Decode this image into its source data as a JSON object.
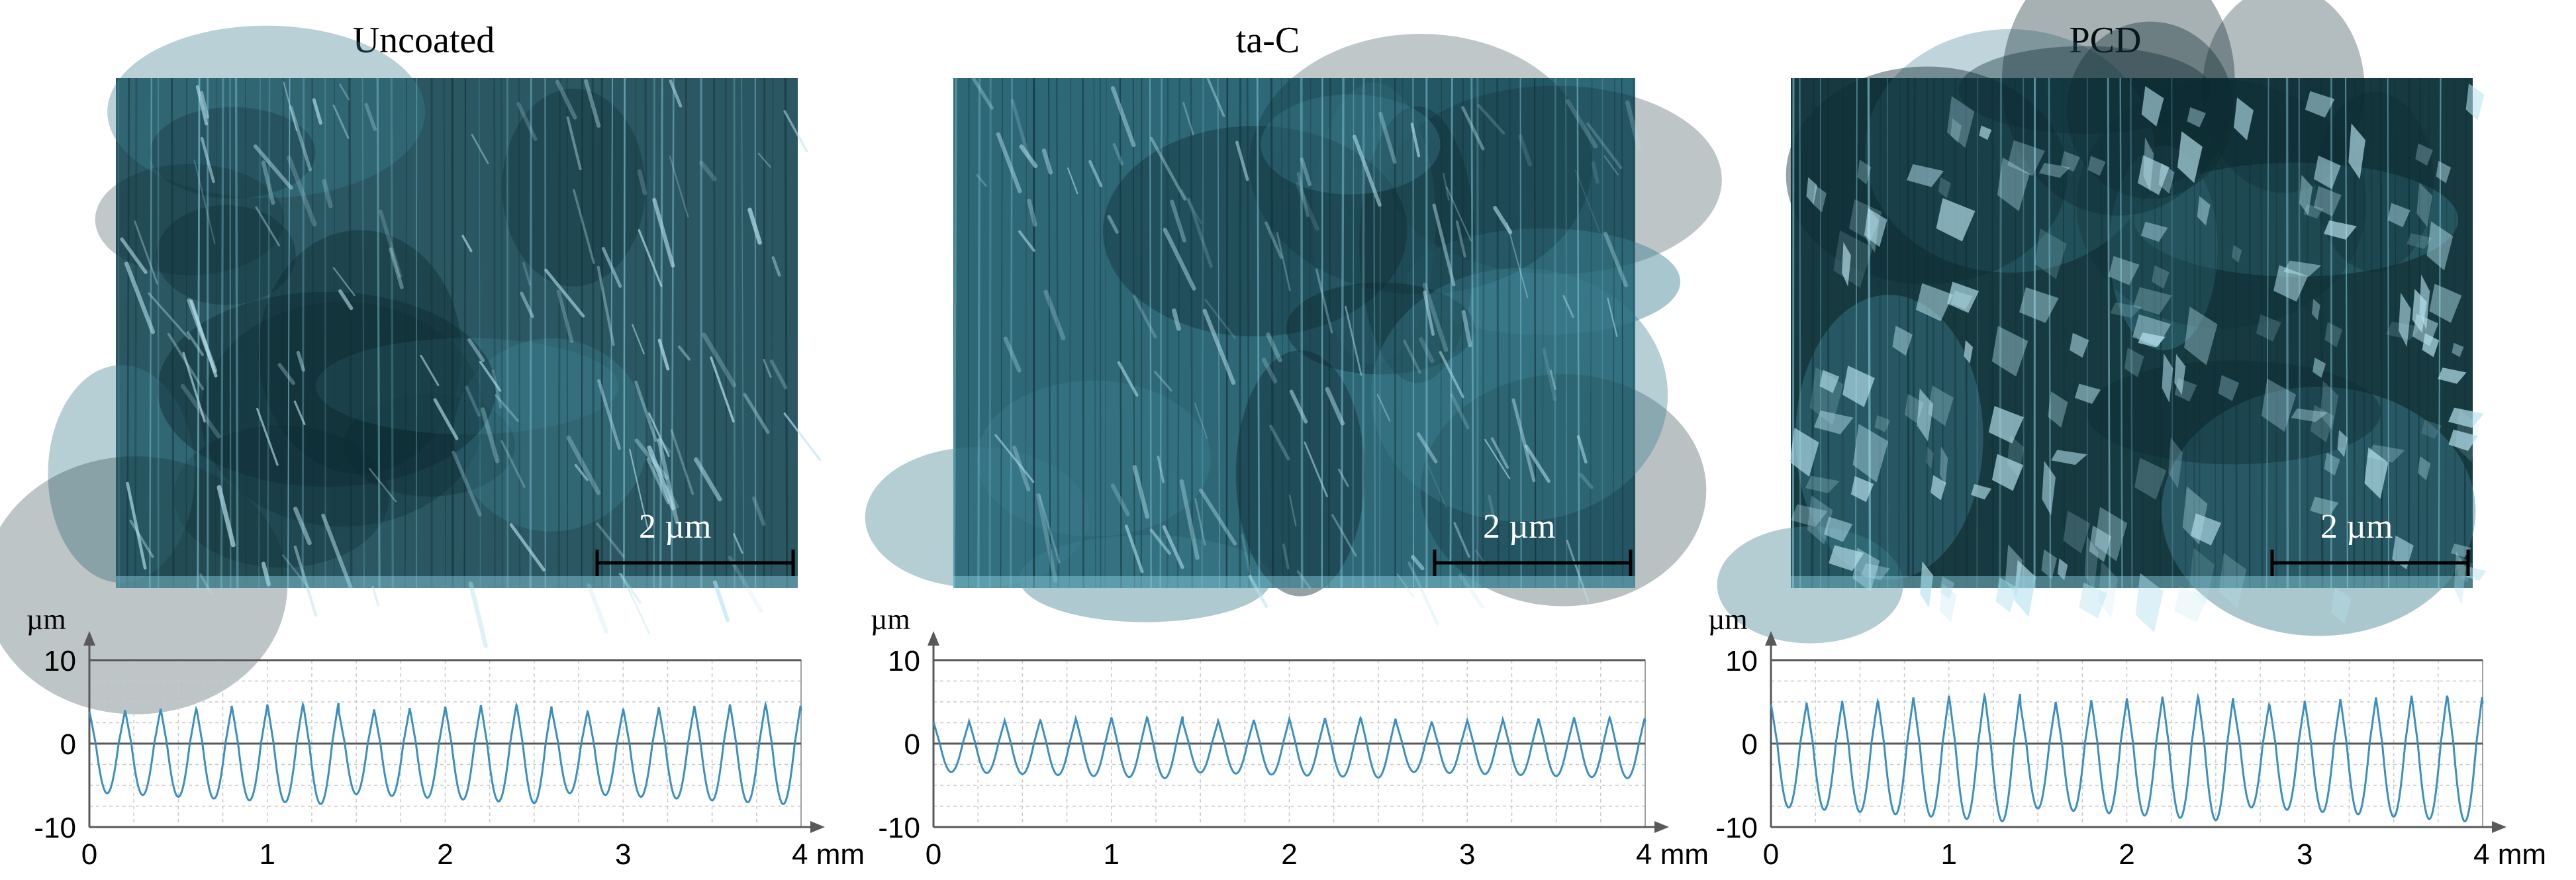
{
  "panels": [
    {
      "title": "Uncoated",
      "scale_bar": "2 µm"
    },
    {
      "title": "ta-C",
      "scale_bar": "2 µm"
    },
    {
      "title": "PCD",
      "scale_bar": "2 µm"
    }
  ],
  "colors": {
    "surface_uncoated": "#2a5762",
    "surface_tac": "#2e6877",
    "surface_pcd": "#163a40",
    "streak": "#b8e3ef",
    "profile_line": "#3b8fbf",
    "axis": "#595959"
  },
  "chart_data": [
    {
      "type": "line",
      "title": "Uncoated",
      "xlabel": "mm",
      "ylabel": "µm",
      "xlim": [
        0,
        4
      ],
      "ylim": [
        -10,
        10
      ],
      "x_ticks": [
        "0",
        "1",
        "2",
        "3",
        "4"
      ],
      "y_ticks": [
        "10",
        "0",
        "-10"
      ],
      "grid": true,
      "x_unit_label": "4 mm",
      "series": [
        {
          "period_mm": 0.2,
          "peak_um": 4.5,
          "valley_um": -7.0,
          "peaks": 20
        }
      ]
    },
    {
      "type": "line",
      "title": "ta-C",
      "xlabel": "mm",
      "ylabel": "µm",
      "xlim": [
        0,
        4
      ],
      "ylim": [
        -10,
        10
      ],
      "x_ticks": [
        "0",
        "1",
        "2",
        "3",
        "4"
      ],
      "y_ticks": [
        "10",
        "0",
        "-10"
      ],
      "grid": true,
      "x_unit_label": "4 mm",
      "series": [
        {
          "period_mm": 0.2,
          "peak_um": 3.0,
          "valley_um": -4.0,
          "peaks": 20
        }
      ]
    },
    {
      "type": "line",
      "title": "PCD",
      "xlabel": "mm",
      "ylabel": "µm",
      "xlim": [
        0,
        4
      ],
      "ylim": [
        -10,
        10
      ],
      "x_ticks": [
        "0",
        "1",
        "2",
        "3",
        "4"
      ],
      "y_ticks": [
        "10",
        "0",
        "-10"
      ],
      "grid": true,
      "x_unit_label": "4 mm",
      "series": [
        {
          "period_mm": 0.2,
          "peak_um": 5.5,
          "valley_um": -9.0,
          "peaks": 20
        }
      ]
    }
  ]
}
